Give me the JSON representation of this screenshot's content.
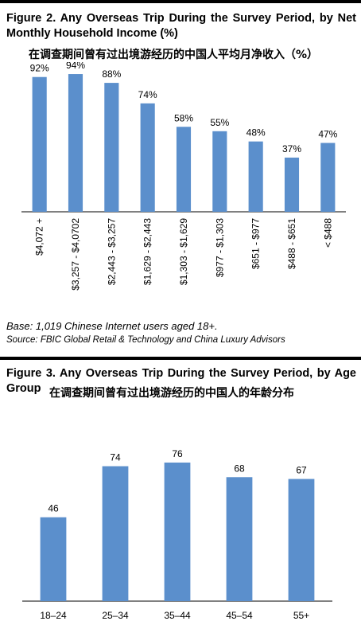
{
  "figures": [
    {
      "title": "Figure 2. Any Overseas Trip During the Survey Period, by Net Monthly Household Income (%)",
      "subtitle_cn": "在调查期间曾有过出境游经历的中国人平均月净收入（%）",
      "base_note": "Base: 1,019 Chinese Internet users aged 18+.",
      "source_note": "Source: FBIC Global Retail & Technology and China Luxury Advisors"
    },
    {
      "title": "Figure 3. Any Overseas Trip During the Survey Period, by Age Group",
      "subtitle_cn": "在调查期间曾有过出境游经历的中国人的年龄分布"
    }
  ],
  "colors": {
    "bar": "#5b8fcc",
    "axis": "#000000",
    "frame": "#000000"
  },
  "chart_data": [
    {
      "type": "bar",
      "title": "Figure 2. Any Overseas Trip During the Survey Period, by Net Monthly Household Income (%)",
      "categories": [
        "$4,072 +",
        "$3,257 - $4,0702",
        "$2,443 - $3,257",
        "$1,629 - $2,443",
        "$1,303 - $1,629",
        "$977 - $1,303",
        "$651 - $977",
        "$488 - $651",
        "< $488"
      ],
      "values": [
        92,
        94,
        88,
        74,
        58,
        55,
        48,
        37,
        47
      ],
      "value_labels": [
        "92%",
        "94%",
        "88%",
        "74%",
        "58%",
        "55%",
        "48%",
        "37%",
        "47%"
      ],
      "ylim": [
        0,
        100
      ],
      "grid": false,
      "legend": "none",
      "xtick_rotation": "vertical"
    },
    {
      "type": "bar",
      "title": "Figure 3. Any Overseas Trip During the Survey Period, by Age Group",
      "categories": [
        "18–24",
        "25–34",
        "35–44",
        "45–54",
        "55+"
      ],
      "values": [
        46,
        74,
        76,
        68,
        67
      ],
      "value_labels": [
        "46",
        "74",
        "76",
        "68",
        "67"
      ],
      "ylim": [
        0,
        100
      ],
      "grid": false,
      "legend": "none"
    }
  ]
}
